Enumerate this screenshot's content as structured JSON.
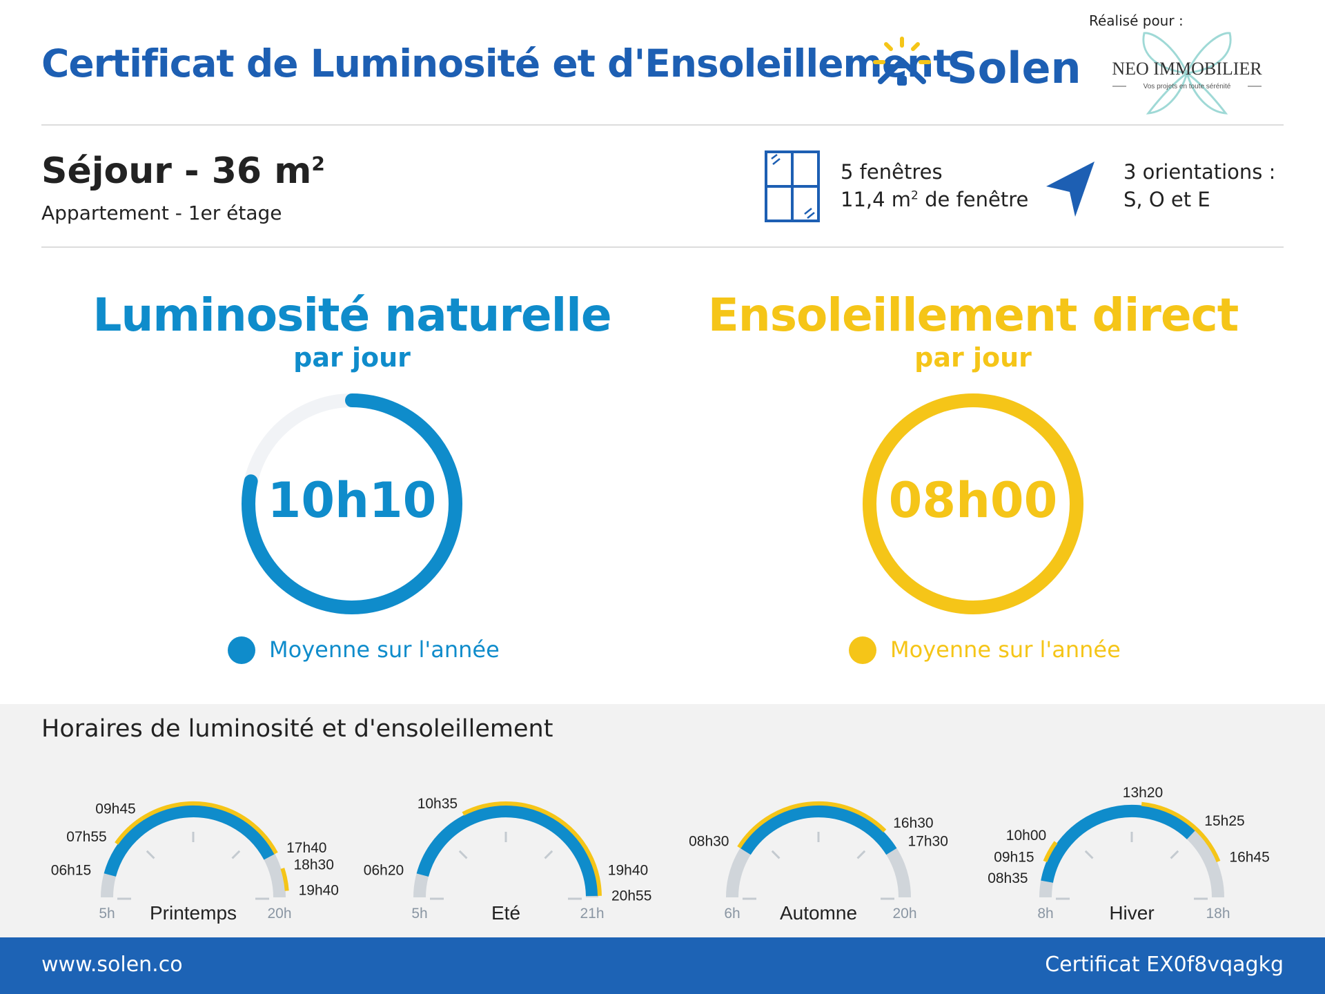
{
  "header": {
    "title": "Certificat de Luminosité et d'Ensoleillement",
    "brand": "Solen",
    "made_for": "Réalisé pour :",
    "partner_name": "NEO IMMOBILIER",
    "partner_tagline": "Vos projets en toute sérénité"
  },
  "room": {
    "title": "Séjour - 36 m",
    "title_sup": "2",
    "subtitle": "Appartement - 1er étage",
    "windows_line1": "5 fenêtres",
    "windows_line2_a": "11,4 m",
    "windows_line2_sup": "2",
    "windows_line2_b": " de fenêtre",
    "orientation_line1": "3 orientations :",
    "orientation_line2": "S, O et E"
  },
  "luminosity": {
    "title": "Luminosité naturelle",
    "subtitle": "par jour",
    "value": "10h10",
    "fraction_of_day": 0.7847,
    "legend": "Moyenne sur l'année"
  },
  "sunshine": {
    "title": "Ensoleillement direct",
    "subtitle": "par jour",
    "value": "08h00",
    "fraction_of_day": 1.0,
    "legend": "Moyenne sur l'année"
  },
  "schedule": {
    "title": "Horaires de luminosité et d'ensoleillement",
    "seasons": [
      {
        "name": "Printemps",
        "start_label": "5h",
        "end_label": "20h",
        "start_h": 5,
        "end_h": 20,
        "light": [
          [
            6.25,
            17.667
          ]
        ],
        "sun": [
          [
            7.917,
            9.75
          ],
          [
            9.75,
            17.667
          ],
          [
            18.5,
            19.667
          ]
        ],
        "labels": [
          {
            "t": 6.25,
            "text": "06h15"
          },
          {
            "t": 7.917,
            "text": "07h55"
          },
          {
            "t": 9.75,
            "text": "09h45"
          },
          {
            "t": 17.667,
            "text": "17h40"
          },
          {
            "t": 18.5,
            "text": "18h30"
          },
          {
            "t": 19.667,
            "text": "19h40"
          }
        ]
      },
      {
        "name": "Eté",
        "start_label": "5h",
        "end_label": "21h",
        "start_h": 5,
        "end_h": 21,
        "light": [
          [
            6.333,
            20.917
          ]
        ],
        "sun": [
          [
            10.583,
            20.917
          ]
        ],
        "labels": [
          {
            "t": 6.333,
            "text": "06h20"
          },
          {
            "t": 10.583,
            "text": "10h35"
          },
          {
            "t": 19.667,
            "text": "19h40"
          },
          {
            "t": 20.917,
            "text": "20h55"
          }
        ]
      },
      {
        "name": "Automne",
        "start_label": "6h",
        "end_label": "20h",
        "start_h": 6,
        "end_h": 20,
        "light": [
          [
            8.5,
            17.5
          ]
        ],
        "sun": [
          [
            8.5,
            16.5
          ]
        ],
        "labels": [
          {
            "t": 8.5,
            "text": "08h30"
          },
          {
            "t": 16.5,
            "text": "16h30"
          },
          {
            "t": 17.5,
            "text": "17h30"
          }
        ]
      },
      {
        "name": "Hiver",
        "start_label": "8h",
        "end_label": "18h",
        "start_h": 8,
        "end_h": 18,
        "light": [
          [
            8.583,
            15.417
          ]
        ],
        "sun": [
          [
            9.25,
            10.0
          ],
          [
            13.333,
            16.75
          ]
        ],
        "labels": [
          {
            "t": 8.583,
            "text": "08h35"
          },
          {
            "t": 9.25,
            "text": "09h15"
          },
          {
            "t": 10.0,
            "text": "10h00"
          },
          {
            "t": 13.333,
            "text": "13h20"
          },
          {
            "t": 15.417,
            "text": "15h25"
          },
          {
            "t": 16.75,
            "text": "16h45"
          }
        ]
      }
    ]
  },
  "footer": {
    "url": "www.solen.co",
    "certificate": "Certificat EX0f8vqagkg"
  },
  "colors": {
    "primary_blue": "#1d5fb3",
    "light_blue": "#0f8ccb",
    "yellow": "#f5c518",
    "track_grey": "#d0d5da",
    "ring_track": "#f1f3f6",
    "footer_blue": "#1d63b5"
  }
}
